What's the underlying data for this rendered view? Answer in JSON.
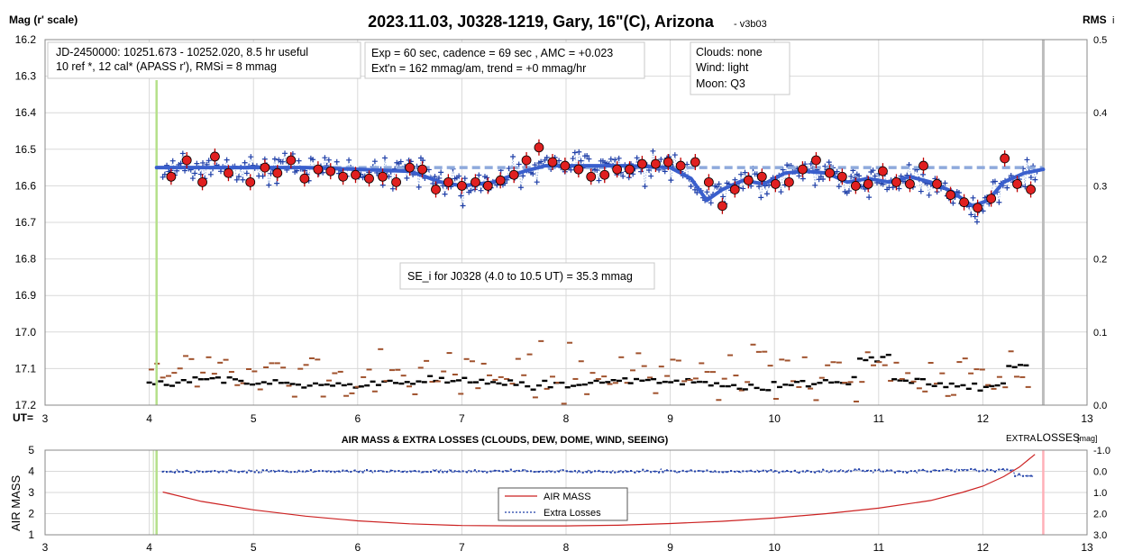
{
  "top_chart": {
    "title": "2023.11.03, J0328-1219, Gary, 16\"(C), Arizona",
    "version": "- v3b03",
    "y_left_label": "Mag (r' scale)",
    "y_right_label": "RMS",
    "y_right_label_suffix": "i",
    "x_prefix": "UT=",
    "info_box_1": [
      "JD-2450000: 10251.673 - 10252.020, 8.5 hr useful",
      "10 ref *, 12 cal*  (APASS r'), RMSi = 8 mmag"
    ],
    "info_box_2": [
      "Exp = 60 sec, cadence = 69 sec , AMC = +0.023",
      "Ext'n = 162 mmag/am, trend = +0 mmag/hr"
    ],
    "info_box_3": [
      "Clouds: none",
      "Wind:   light",
      "Moon:  Q3"
    ],
    "se_box": "SE_i for J0328 (4.0 to 10.5 UT) = 35.3 mmag",
    "colors": {
      "points": "#1f3fa8",
      "binned": "#e02020",
      "fit": "#3a5fcd",
      "dashed": "#8faadc",
      "rms_black": "#000000",
      "rms_brown": "#a0522d",
      "start_line": "#b5e08a",
      "end_line": "#bdbdbd"
    }
  },
  "bottom_chart": {
    "title": "AIR MASS & EXTRA LOSSES (CLOUDS, DEW, DOME, WIND, SEEING)",
    "y_left_label": "AIR MASS",
    "y_right_label_prefix": "EXTRA ",
    "y_right_label_main": "LOSSES",
    "y_right_label_unit": "[mag]",
    "legend_air_mass": "AIR MASS",
    "legend_extra_losses": "Extra Losses",
    "colors": {
      "air_mass": "#cc2222",
      "extra_losses": "#1f3fa8",
      "start_line": "#b5e08a",
      "end_line": "#ffb0b8"
    }
  },
  "chart_data": [
    {
      "type": "scatter",
      "title": "2023.11.03, J0328-1219, Gary, 16\"(C), Arizona",
      "xlabel": "UT",
      "ylabel": "Mag (r' scale)",
      "y2label": "RMS",
      "xlim": [
        3,
        13
      ],
      "ylim": [
        17.2,
        16.2
      ],
      "y2lim": [
        0.0,
        0.5
      ],
      "x_ticks": [
        "3",
        "4",
        "5",
        "6",
        "7",
        "8",
        "9",
        "10",
        "11",
        "12",
        "13"
      ],
      "y_ticks": [
        "16.2",
        "16.3",
        "16.4",
        "16.5",
        "16.6",
        "16.7",
        "16.8",
        "16.9",
        "17.0",
        "17.1",
        "17.2"
      ],
      "y2_ticks": [
        "0.5",
        "0.4",
        "0.3",
        "0.2",
        "0.1",
        "0.0"
      ],
      "grid": true,
      "marker_lines_ut": [
        4.07,
        12.58
      ],
      "series": [
        {
          "name": "binned",
          "x": [
            4.21,
            4.36,
            4.51,
            4.63,
            4.76,
            4.97,
            5.11,
            5.23,
            5.36,
            5.49,
            5.62,
            5.74,
            5.86,
            5.98,
            6.11,
            6.24,
            6.37,
            6.5,
            6.62,
            6.75,
            6.87,
            7.0,
            7.13,
            7.25,
            7.37,
            7.5,
            7.62,
            7.74,
            7.87,
            7.99,
            8.12,
            8.24,
            8.37,
            8.49,
            8.61,
            8.73,
            8.86,
            8.98,
            9.1,
            9.24,
            9.37,
            9.5,
            9.62,
            9.75,
            9.88,
            10.01,
            10.14,
            10.27,
            10.4,
            10.53,
            10.65,
            10.78,
            10.9,
            11.04,
            11.17,
            11.3,
            11.43,
            11.56,
            11.69,
            11.82,
            11.95,
            12.08,
            12.21,
            12.33,
            12.46
          ],
          "y": [
            16.575,
            16.53,
            16.59,
            16.52,
            16.565,
            16.59,
            16.55,
            16.565,
            16.53,
            16.58,
            16.555,
            16.56,
            16.575,
            16.57,
            16.58,
            16.575,
            16.59,
            16.55,
            16.555,
            16.61,
            16.59,
            16.6,
            16.59,
            16.6,
            16.585,
            16.57,
            16.53,
            16.495,
            16.535,
            16.545,
            16.555,
            16.575,
            16.57,
            16.555,
            16.555,
            16.54,
            16.54,
            16.535,
            16.545,
            16.535,
            16.59,
            16.655,
            16.61,
            16.585,
            16.575,
            16.595,
            16.59,
            16.555,
            16.53,
            16.565,
            16.575,
            16.6,
            16.595,
            16.56,
            16.59,
            16.595,
            16.545,
            16.595,
            16.625,
            16.645,
            16.66,
            16.635,
            16.525,
            16.595,
            16.61
          ]
        },
        {
          "name": "fit",
          "x": [
            4.07,
            4.5,
            5.0,
            5.5,
            6.0,
            6.5,
            6.8,
            7.0,
            7.3,
            7.6,
            7.8,
            8.2,
            8.6,
            9.0,
            9.2,
            9.35,
            9.5,
            9.7,
            9.9,
            10.1,
            10.3,
            10.5,
            10.7,
            10.9,
            11.1,
            11.3,
            11.5,
            11.7,
            11.9,
            12.05,
            12.2,
            12.4,
            12.58
          ],
          "y": [
            16.55,
            16.55,
            16.55,
            16.55,
            16.555,
            16.56,
            16.59,
            16.6,
            16.59,
            16.56,
            16.545,
            16.545,
            16.545,
            16.55,
            16.58,
            16.64,
            16.61,
            16.585,
            16.595,
            16.565,
            16.56,
            16.565,
            16.59,
            16.58,
            16.59,
            16.575,
            16.59,
            16.615,
            16.655,
            16.64,
            16.59,
            16.565,
            16.555
          ]
        },
        {
          "name": "dashed",
          "x": [
            4.07,
            12.58
          ],
          "y": [
            16.55,
            16.55
          ]
        }
      ]
    },
    {
      "type": "line",
      "title": "AIR MASS & EXTRA LOSSES (CLOUDS, DEW, DOME, WIND, SEEING)",
      "xlabel": "",
      "ylabel": "AIR MASS",
      "y2label": "EXTRA LOSSES [mag]",
      "xlim": [
        3,
        13
      ],
      "ylim": [
        1,
        5
      ],
      "y2lim": [
        3.0,
        -1.0
      ],
      "x_ticks": [
        "3",
        "4",
        "5",
        "6",
        "7",
        "8",
        "9",
        "10",
        "11",
        "12",
        "13"
      ],
      "y_ticks": [
        "1",
        "2",
        "3",
        "4",
        "5"
      ],
      "y2_ticks": [
        "-1.0",
        "0.0",
        "1.0",
        "2.0",
        "3.0"
      ],
      "grid": true,
      "legend_position": "center-bottom",
      "series": [
        {
          "name": "AIR MASS",
          "x": [
            4.13,
            4.5,
            5.0,
            5.5,
            6.0,
            6.5,
            7.0,
            7.5,
            8.0,
            8.5,
            9.0,
            9.5,
            10.0,
            10.5,
            11.0,
            11.5,
            11.8,
            12.0,
            12.2,
            12.35,
            12.45,
            12.5
          ],
          "y": [
            3.02,
            2.58,
            2.18,
            1.88,
            1.66,
            1.52,
            1.44,
            1.42,
            1.42,
            1.45,
            1.53,
            1.64,
            1.79,
            2.0,
            2.26,
            2.62,
            3.0,
            3.3,
            3.75,
            4.2,
            4.6,
            4.8
          ]
        },
        {
          "name": "Extra Losses",
          "x": [
            4.13,
            12.5
          ],
          "y": [
            0.0,
            0.0
          ]
        }
      ]
    }
  ]
}
